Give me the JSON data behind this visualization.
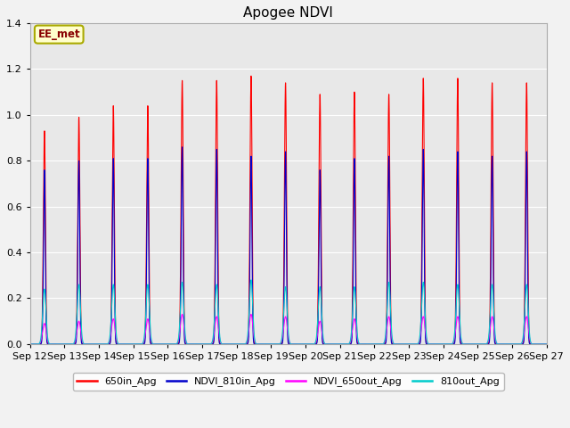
{
  "title": "Apogee NDVI",
  "xlabel": "",
  "ylabel": "",
  "ylim": [
    0.0,
    1.4
  ],
  "xtick_dates": [
    "Sep 12",
    "Sep 13",
    "Sep 14",
    "Sep 15",
    "Sep 16",
    "Sep 17",
    "Sep 18",
    "Sep 19",
    "Sep 20",
    "Sep 21",
    "Sep 22",
    "Sep 23",
    "Sep 24",
    "Sep 25",
    "Sep 26",
    "Sep 27"
  ],
  "yticks": [
    0.0,
    0.2,
    0.4,
    0.6,
    0.8,
    1.0,
    1.2,
    1.4
  ],
  "bg_color": "#e8e8e8",
  "fig_color": "#f2f2f2",
  "annotation_text": "EE_met",
  "annotation_bg": "#ffffcc",
  "annotation_border": "#aaaa00",
  "series": {
    "650in_Apg": {
      "color": "#ff0000",
      "lw": 0.8
    },
    "NDVI_810in_Apg": {
      "color": "#0000cc",
      "lw": 0.8
    },
    "NDVI_650out_Apg": {
      "color": "#ff00ff",
      "lw": 0.8
    },
    "810out_Apg": {
      "color": "#00cccc",
      "lw": 0.8
    }
  },
  "days": 15,
  "peak_red": [
    0.93,
    0.99,
    1.04,
    1.04,
    1.15,
    1.15,
    1.17,
    1.14,
    1.09,
    1.1,
    1.09,
    1.16,
    1.16,
    1.14,
    1.14
  ],
  "peak_blue": [
    0.76,
    0.8,
    0.81,
    0.81,
    0.86,
    0.85,
    0.82,
    0.84,
    0.76,
    0.81,
    0.82,
    0.85,
    0.84,
    0.82,
    0.84
  ],
  "peak_magenta": [
    0.09,
    0.1,
    0.11,
    0.11,
    0.13,
    0.12,
    0.13,
    0.12,
    0.1,
    0.11,
    0.12,
    0.12,
    0.12,
    0.12,
    0.12
  ],
  "peak_cyan": [
    0.24,
    0.26,
    0.26,
    0.26,
    0.27,
    0.26,
    0.28,
    0.25,
    0.25,
    0.25,
    0.27,
    0.27,
    0.26,
    0.26,
    0.26
  ]
}
